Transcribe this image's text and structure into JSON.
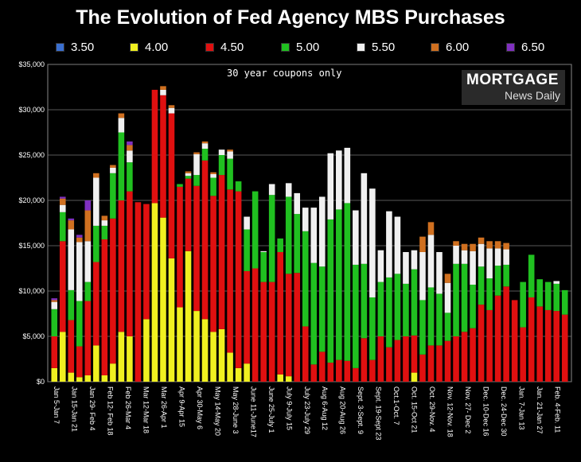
{
  "chart_data": {
    "type": "bar",
    "stacked": true,
    "title": "The Evolution of Fed Agency MBS Purchases",
    "annotation": "30 year coupons only",
    "logo": {
      "top": "MORTGAGE",
      "bottom": "News Daily"
    },
    "ylim": [
      0,
      35000
    ],
    "y_ticks": [
      "$0",
      "$5,000",
      "$10,000",
      "$15,000",
      "$20,000",
      "$25,000",
      "$30,000",
      "$35,000"
    ],
    "y_tick_values": [
      0,
      5000,
      10000,
      15000,
      20000,
      25000,
      30000,
      35000
    ],
    "grid": true,
    "legend_position": "top",
    "series": [
      {
        "name": "3.50",
        "color": "#3a6fd0"
      },
      {
        "name": "4.00",
        "color": "#f0f020"
      },
      {
        "name": "4.50",
        "color": "#e01010"
      },
      {
        "name": "5.00",
        "color": "#20c020"
      },
      {
        "name": "5.50",
        "color": "#f0f0f0"
      },
      {
        "name": "6.00",
        "color": "#d07020"
      },
      {
        "name": "6.50",
        "color": "#8030c0"
      }
    ],
    "x_labels": [
      "Jan 5-Jan 7",
      "Jan 15-Jan 21",
      "Jan 29- Feb 4",
      "Feb 12- Feb 18",
      "Feb 26-Mar 4",
      "Mar 12-Mar 18",
      "Mar 26-Apr 1",
      "Apr 9-Apr 15",
      "Apr 30-May 6",
      "May 14-May 20",
      "May 28-June 3",
      "June 11-June17",
      "June 25-July 1",
      "July 9-July 15",
      "July 23-July 29",
      "Aug 6-Aug 12",
      "Aug 20-Aug 26",
      "Sept. 3-Sept. 9",
      "Sept. 19-Sept 23",
      "Oct.1-Oct. 7",
      "Oct. 15-Oct 21",
      "Oct. 29-Nov. 4",
      "Nov. 12-Nov. 18",
      "Nov. 27- Dec 2",
      "Dec. 10-Dec 16",
      "Dec. 24-Dec 30",
      "Jan. 7-Jan 13",
      "Jan. 21-Jan 27",
      "Feb. 4-Feb. 11"
    ],
    "bars": [
      [
        0,
        1500,
        3500,
        3000,
        800,
        200,
        200
      ],
      [
        0,
        5500,
        10000,
        3200,
        800,
        700,
        200
      ],
      [
        0,
        1000,
        5800,
        3300,
        6700,
        1000,
        200
      ],
      [
        0,
        500,
        3400,
        5000,
        6500,
        500,
        300
      ],
      [
        0,
        700,
        8200,
        2100,
        4500,
        3400,
        1100
      ],
      [
        0,
        4000,
        9200,
        4000,
        5300,
        500,
        0
      ],
      [
        0,
        700,
        15000,
        1500,
        600,
        500,
        0
      ],
      [
        0,
        2000,
        16000,
        5000,
        600,
        300,
        0
      ],
      [
        0,
        5500,
        14500,
        7500,
        1600,
        500,
        0
      ],
      [
        0,
        5000,
        16000,
        3200,
        1300,
        600,
        400
      ],
      [
        0,
        0,
        19800,
        0,
        0,
        0,
        0
      ],
      [
        0,
        6900,
        12700,
        0,
        0,
        0,
        0
      ],
      [
        0,
        19700,
        12500,
        0,
        0,
        0,
        0
      ],
      [
        0,
        18100,
        13500,
        0,
        600,
        400,
        0
      ],
      [
        0,
        13600,
        16000,
        0,
        600,
        300,
        0
      ],
      [
        0,
        8200,
        13300,
        300,
        0,
        0,
        0
      ],
      [
        0,
        14400,
        8000,
        300,
        300,
        200,
        0
      ],
      [
        0,
        7800,
        13800,
        1200,
        2300,
        200,
        0
      ],
      [
        0,
        6900,
        17500,
        1300,
        600,
        200,
        0
      ],
      [
        0,
        5500,
        15000,
        2000,
        400,
        200,
        0
      ],
      [
        0,
        5800,
        17000,
        2200,
        600,
        0,
        0
      ],
      [
        0,
        3200,
        18000,
        3400,
        800,
        200,
        0
      ],
      [
        0,
        1500,
        19500,
        1100,
        0,
        0,
        0
      ],
      [
        0,
        2000,
        10200,
        4600,
        1400,
        0,
        0
      ],
      [
        0,
        0,
        12500,
        8500,
        0,
        0,
        0
      ],
      [
        0,
        0,
        11000,
        3300,
        100,
        0,
        0
      ],
      [
        0,
        0,
        11000,
        9600,
        1200,
        0,
        0
      ],
      [
        0,
        800,
        13500,
        1500,
        0,
        0,
        0
      ],
      [
        0,
        600,
        11300,
        8500,
        1500,
        0,
        0
      ],
      [
        0,
        0,
        12000,
        6500,
        2300,
        0,
        0
      ],
      [
        0,
        0,
        6100,
        10500,
        2600,
        0,
        0
      ],
      [
        0,
        0,
        1900,
        11200,
        6100,
        0,
        0
      ],
      [
        0,
        0,
        3300,
        9400,
        7700,
        0,
        0
      ],
      [
        0,
        0,
        2100,
        15800,
        7300,
        0,
        0
      ],
      [
        0,
        0,
        2400,
        16600,
        6500,
        0,
        0
      ],
      [
        0,
        0,
        2300,
        17400,
        6100,
        0,
        0
      ],
      [
        0,
        0,
        1500,
        11400,
        6000,
        0,
        0
      ],
      [
        0,
        0,
        4800,
        8200,
        10000,
        0,
        0
      ],
      [
        0,
        0,
        2400,
        6900,
        12000,
        0,
        0
      ],
      [
        0,
        0,
        5000,
        6000,
        3500,
        0,
        0
      ],
      [
        0,
        0,
        3800,
        7700,
        7300,
        0,
        0
      ],
      [
        0,
        0,
        4600,
        7300,
        6300,
        0,
        0
      ],
      [
        0,
        0,
        5000,
        5800,
        3500,
        0,
        0
      ],
      [
        0,
        1000,
        4100,
        7300,
        2100,
        0,
        0
      ],
      [
        0,
        0,
        3000,
        6000,
        5300,
        1700,
        0
      ],
      [
        0,
        0,
        4000,
        6400,
        5800,
        1400,
        0
      ],
      [
        0,
        0,
        4000,
        5700,
        4600,
        0,
        0
      ],
      [
        0,
        0,
        4500,
        3100,
        3300,
        1000,
        0
      ],
      [
        0,
        0,
        5000,
        8000,
        2000,
        500,
        0
      ],
      [
        0,
        0,
        5500,
        7500,
        1500,
        700,
        0
      ],
      [
        0,
        0,
        5900,
        4800,
        3700,
        800,
        0
      ],
      [
        0,
        0,
        8500,
        4200,
        2500,
        700,
        0
      ],
      [
        0,
        0,
        7900,
        3500,
        3300,
        800,
        0
      ],
      [
        0,
        0,
        9500,
        3300,
        1900,
        800,
        0
      ],
      [
        0,
        0,
        10500,
        2400,
        1700,
        700,
        0
      ],
      [
        0,
        0,
        9000,
        0,
        0,
        0,
        0
      ],
      [
        0,
        0,
        6000,
        5000,
        0,
        0,
        0
      ],
      [
        0,
        0,
        9300,
        4700,
        0,
        0,
        0
      ],
      [
        0,
        0,
        8300,
        3000,
        0,
        0,
        0
      ],
      [
        0,
        0,
        7900,
        3100,
        0,
        0,
        0
      ],
      [
        0,
        0,
        7800,
        3000,
        300,
        0,
        0
      ],
      [
        0,
        0,
        7400,
        2700,
        0,
        0,
        0
      ]
    ]
  }
}
